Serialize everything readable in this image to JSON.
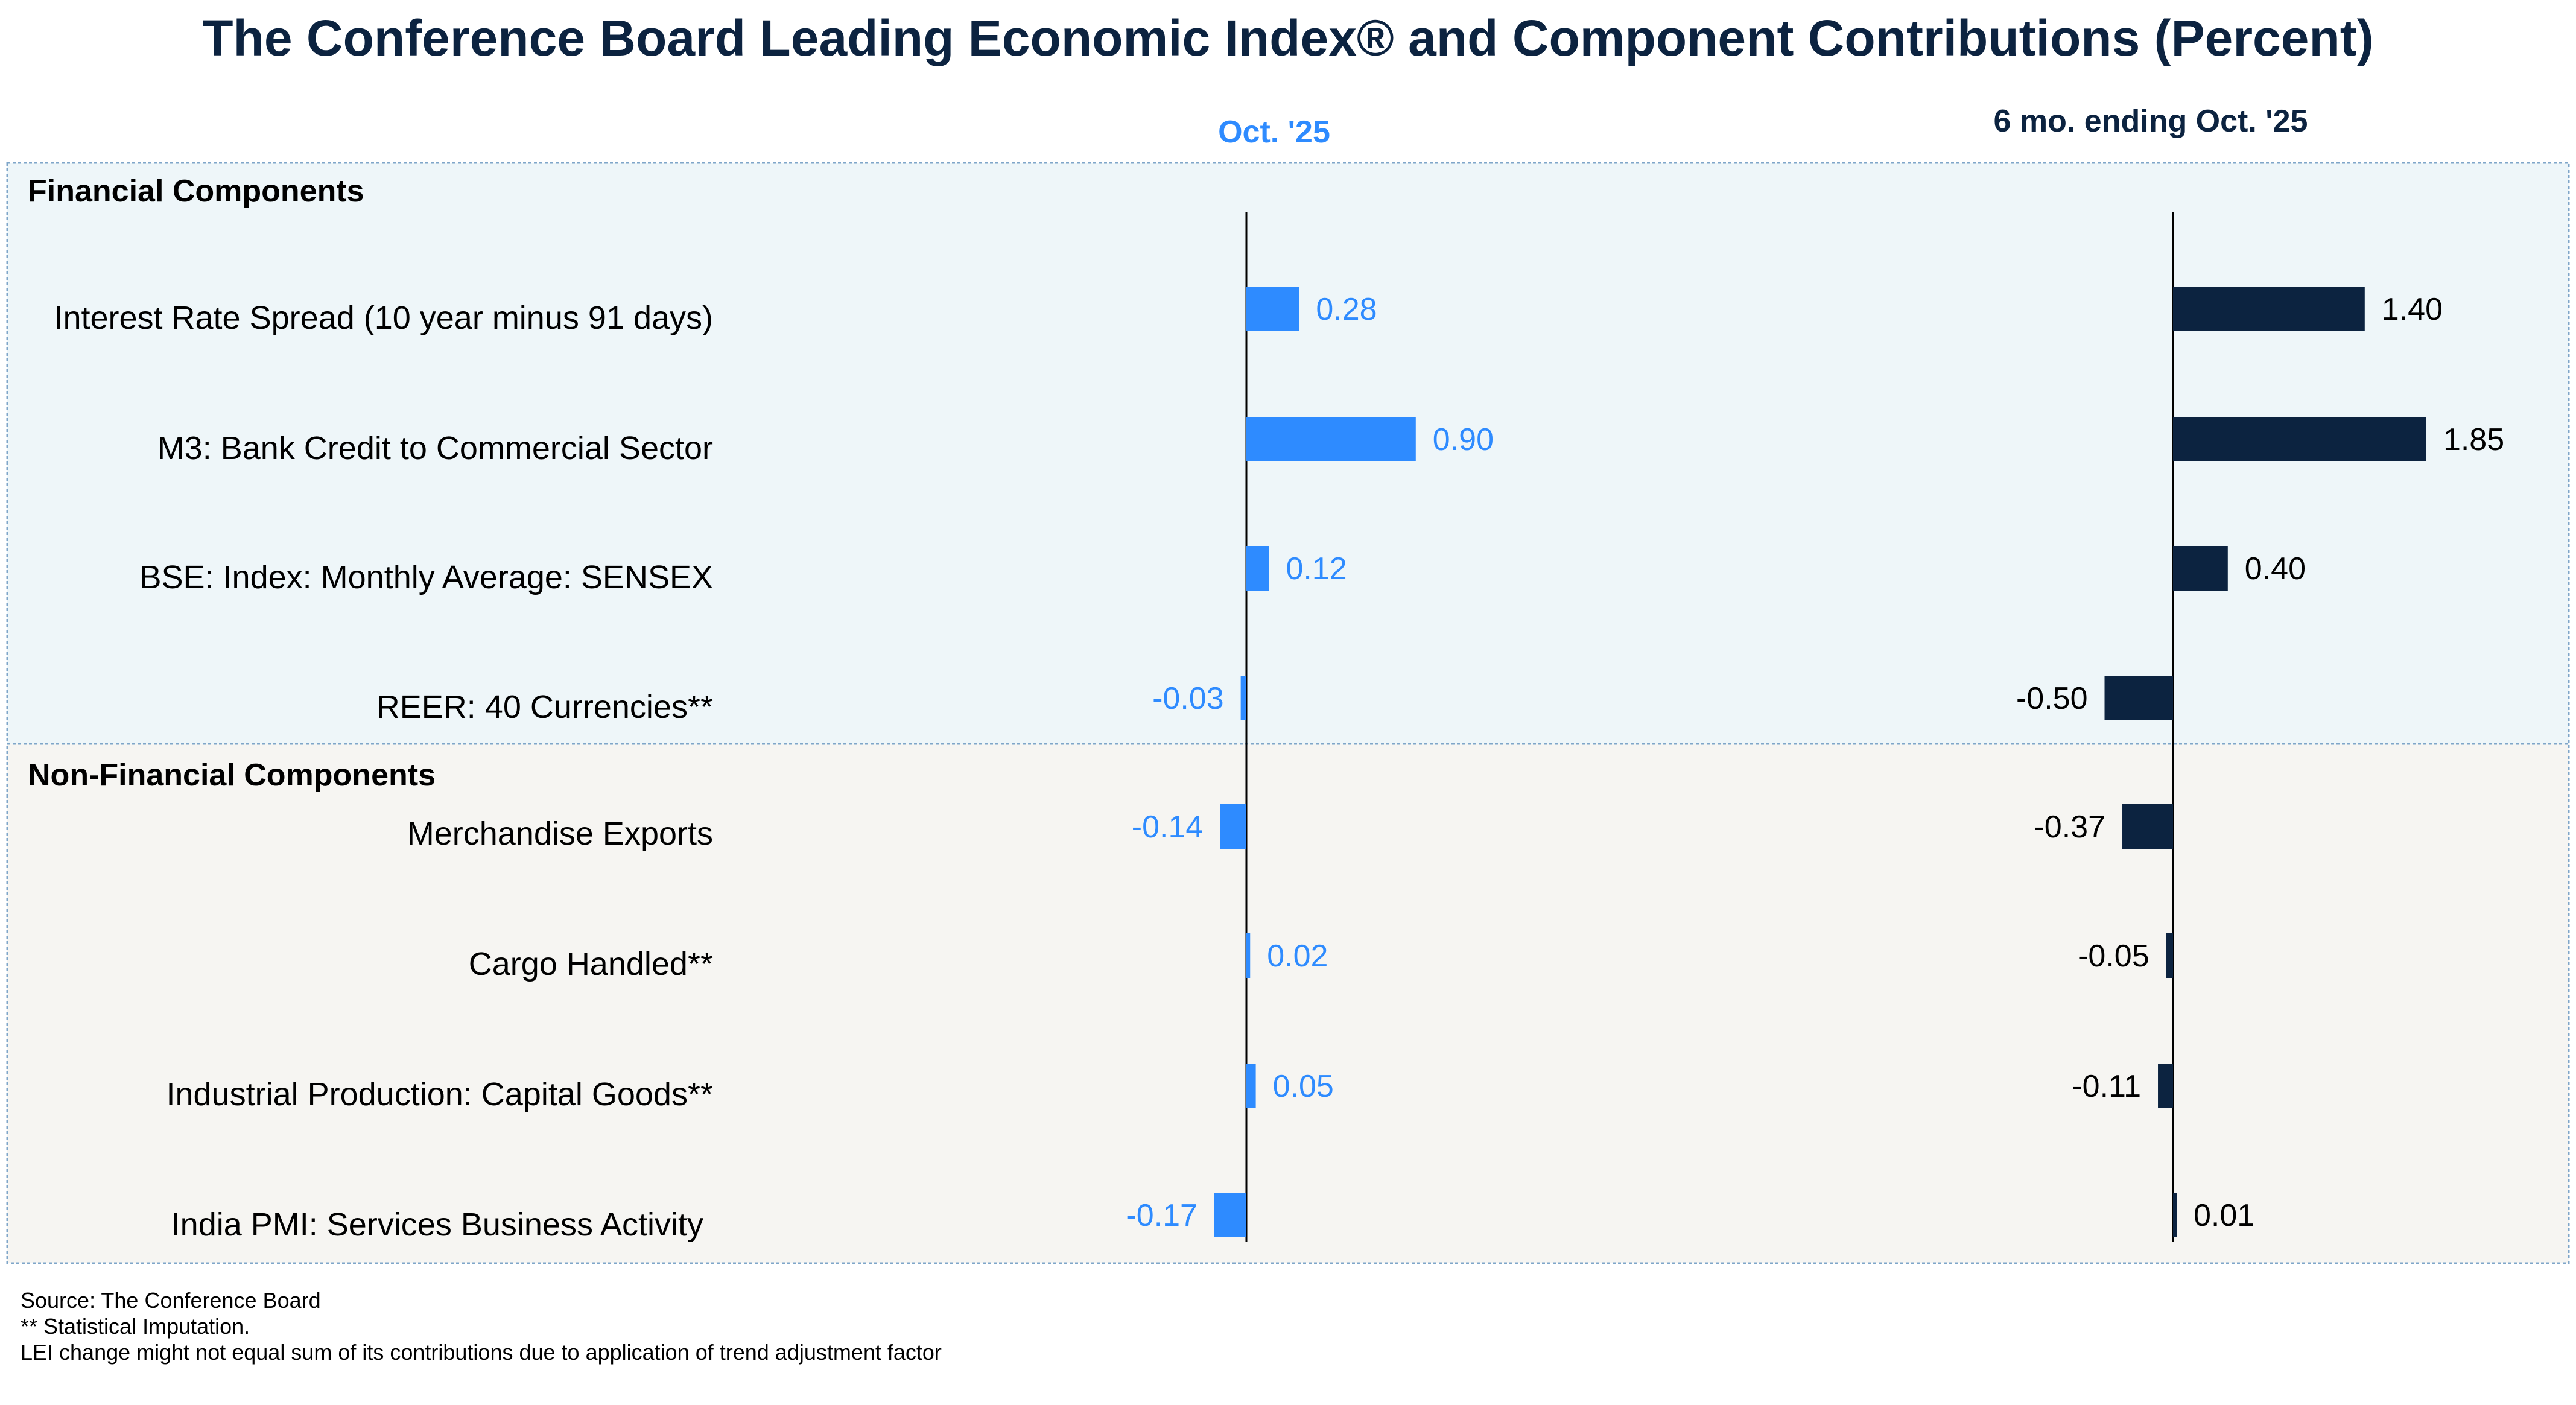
{
  "title": "The Conference Board Leading Economic Index® and Component Contributions (Percent)",
  "colors": {
    "title": "#0c2340",
    "month_series": "#2e8bff",
    "six_month_series": "#0c2340",
    "financial_band": "#eef6f9",
    "nonfinancial_band": "#f6f5f2",
    "band_border": "#7fa6c9"
  },
  "chart_data": [
    {
      "type": "bar",
      "orientation": "horizontal",
      "title": "Oct. '25",
      "categories": [
        "Interest Rate Spread (10 year minus 91 days)",
        "M3: Bank Credit to Commercial Sector",
        "BSE: Index: Monthly Average: SENSEX",
        "REER: 40 Currencies**",
        "Merchandise Exports",
        "Cargo Handled**",
        "Industrial Production: Capital Goods**",
        "India PMI: Services Business Activity"
      ],
      "values": [
        0.28,
        0.9,
        0.12,
        -0.03,
        -0.14,
        0.02,
        0.05,
        -0.17
      ],
      "value_labels": [
        "0.28",
        "0.90",
        "0.12",
        "-0.03",
        "-0.14",
        "0.02",
        "0.05",
        "-0.17"
      ],
      "color": "#2e8bff",
      "data_labels": true
    },
    {
      "type": "bar",
      "orientation": "horizontal",
      "title": "6 mo. ending Oct. '25",
      "categories": [
        "Interest Rate Spread (10 year minus 91 days)",
        "M3: Bank Credit to Commercial Sector",
        "BSE: Index: Monthly Average: SENSEX",
        "REER: 40 Currencies**",
        "Merchandise Exports",
        "Cargo Handled**",
        "Industrial Production: Capital Goods**",
        "India PMI: Services Business Activity"
      ],
      "values": [
        1.4,
        1.85,
        0.4,
        -0.5,
        -0.37,
        -0.05,
        -0.11,
        0.01
      ],
      "value_labels": [
        "1.40",
        "1.85",
        "0.40",
        "-0.50",
        "-0.37",
        "-0.05",
        "-0.11",
        "0.01"
      ],
      "color": "#0c2340",
      "data_labels": true
    }
  ],
  "sections": [
    {
      "label": "Financial Components",
      "count": 4
    },
    {
      "label": "Non-Financial Components",
      "count": 4
    }
  ],
  "footnotes": [
    "Source: The Conference Board",
    "**  Statistical Imputation.",
    "LEI change might not equal sum of its contributions due to application of trend adjustment factor"
  ]
}
